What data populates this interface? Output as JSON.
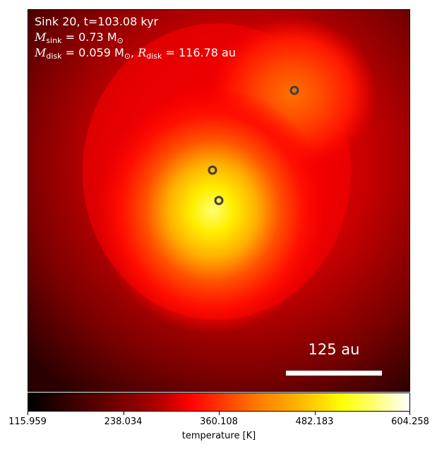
{
  "chart_data": {
    "type": "heatmap",
    "title": "",
    "annotation": {
      "line1": "Sink 20, t=103.08 kyr",
      "line2_symbol": "M",
      "line2_sub": "sink",
      "line2_value": " = 0.73 M",
      "line2_sun_sub": "⊙",
      "line3_symbol": "M",
      "line3_sub": "disk",
      "line3_value": " = 0.059 M",
      "line3_sun_sub": "⊙",
      "line3_sep": ", ",
      "line3_r_symbol": "R",
      "line3_r_sub": "disk",
      "line3_r_value": " = 116.78 au"
    },
    "scalebar_label": "125 au",
    "colorbar": {
      "label": "temperature [K]",
      "vmin": 115.959,
      "vmax": 604.258,
      "ticks": [
        "115.959",
        "238.034",
        "360.108",
        "482.183",
        "604.258"
      ],
      "colormap": "hot"
    },
    "sinks": [
      {
        "x": 0.7,
        "y": 0.78,
        "label": ""
      },
      {
        "x": 0.48,
        "y": 0.57,
        "label": ""
      },
      {
        "x": 0.5,
        "y": 0.5,
        "label": ""
      }
    ],
    "hotspots": [
      {
        "x": 0.48,
        "y": 0.48,
        "temperature": 560
      },
      {
        "x": 0.45,
        "y": 0.55,
        "temperature": 460
      },
      {
        "x": 0.7,
        "y": 0.78,
        "temperature": 330
      }
    ]
  }
}
